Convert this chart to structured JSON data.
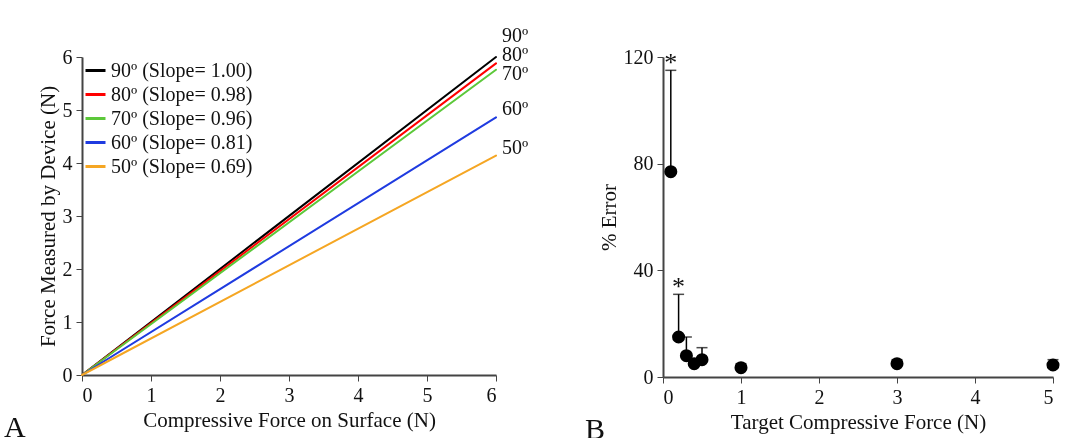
{
  "chart_data": [
    {
      "type": "line",
      "xlabel": "Compressive Force on Surface (N)",
      "ylabel": "Force Measured by Device (N)",
      "series": [
        {
          "name": "90º (Slope= 1.00)",
          "color": "#000000",
          "x": [
            0,
            6
          ],
          "values": [
            0,
            6
          ]
        },
        {
          "name": "80º (Slope= 0.98)",
          "color": "#ff0000",
          "x": [
            0,
            6
          ],
          "values": [
            0,
            5.88
          ]
        },
        {
          "name": "70º (Slope= 0.96)",
          "color": "#5cc83a",
          "x": [
            0,
            6
          ],
          "values": [
            0,
            5.76
          ]
        },
        {
          "name": "60º (Slope= 0.81)",
          "color": "#1f3be0",
          "x": [
            0,
            6
          ],
          "values": [
            0,
            4.86
          ]
        },
        {
          "name": "50º (Slope= 0.69)",
          "color": "#f5a623",
          "x": [
            0,
            6
          ],
          "values": [
            0,
            4.14
          ]
        }
      ],
      "xlim": [
        0,
        6
      ],
      "xticks": [
        0,
        1,
        2,
        3,
        4,
        5,
        6
      ],
      "ylim": [
        0,
        6
      ],
      "yticks": [
        0,
        1,
        2,
        3,
        4,
        5,
        6
      ],
      "legend": "top left",
      "grid": false,
      "line_style": "solid",
      "marker": "none",
      "annotations": [
        {
          "text": "90º",
          "x": 6,
          "y": 6
        },
        {
          "text": "80º",
          "x": 6,
          "y": 5.88
        },
        {
          "text": "70º",
          "x": 6,
          "y": 5.76
        },
        {
          "text": "60º",
          "x": 6,
          "y": 4.86
        },
        {
          "text": "50º",
          "x": 6,
          "y": 4.14
        },
        "A"
      ]
    },
    {
      "type": "scatter",
      "xlabel": "Target Compressive Force (N)",
      "ylabel": "% Error",
      "series": [
        {
          "color": "#000000",
          "x": [
            0.1,
            0.2,
            0.3,
            0.4,
            0.5,
            1,
            3,
            5
          ],
          "values": [
            77,
            15,
            8,
            5,
            6.5,
            3.5,
            5,
            4.5
          ],
          "errors": [
            [
              77,
              115
            ],
            [
              15,
              31
            ],
            [
              8,
              15
            ],
            null,
            [
              6.5,
              11
            ],
            [
              3.5,
              5
            ],
            [
              5,
              6.5
            ],
            [
              4.5,
              6.5
            ]
          ]
        }
      ],
      "xlim": [
        0,
        5
      ],
      "xticks": [
        0,
        1,
        2,
        3,
        4,
        5
      ],
      "ylim": [
        0,
        120
      ],
      "yticks": [
        0,
        40,
        80,
        120
      ],
      "grid": false,
      "marker": "circle",
      "annotations": [
        {
          "text": "*",
          "x": 0.1,
          "y": 115
        },
        {
          "text": "*",
          "x": 0.2,
          "y": 31
        },
        "B"
      ]
    }
  ]
}
